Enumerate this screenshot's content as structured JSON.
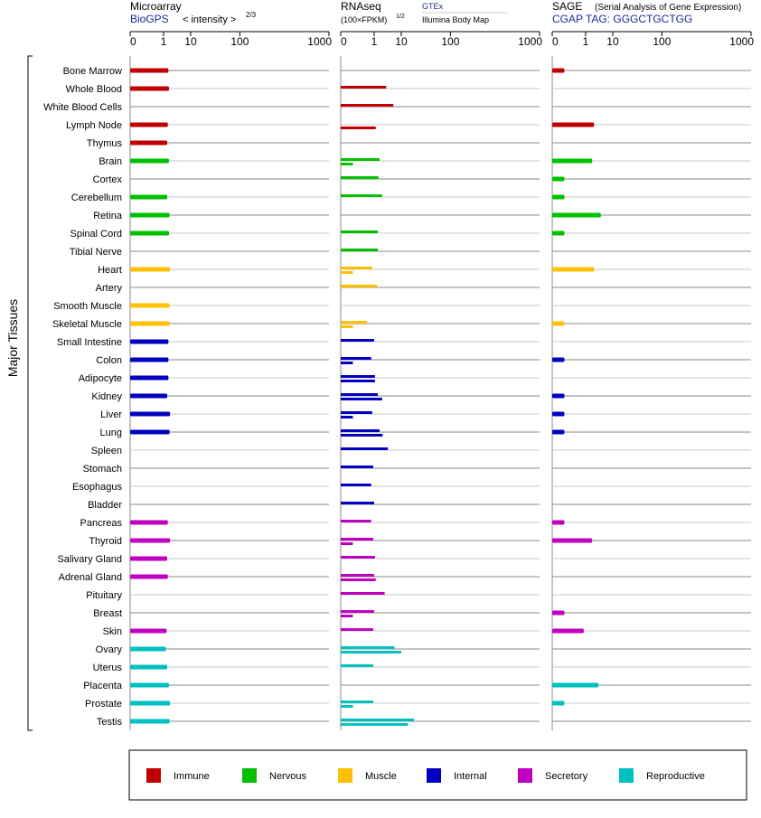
{
  "chart_data": {
    "type": "bar",
    "y_group_label": "Major Tissues",
    "x_ticks": [
      "0",
      "1",
      "10",
      "100",
      "1000"
    ],
    "tissues": [
      {
        "name": "Bone Marrow",
        "group": "immune"
      },
      {
        "name": "Whole Blood",
        "group": "immune"
      },
      {
        "name": "White Blood Cells",
        "group": "immune"
      },
      {
        "name": "Lymph Node",
        "group": "immune"
      },
      {
        "name": "Thymus",
        "group": "immune"
      },
      {
        "name": "Brain",
        "group": "nervous"
      },
      {
        "name": "Cortex",
        "group": "nervous"
      },
      {
        "name": "Cerebellum",
        "group": "nervous"
      },
      {
        "name": "Retina",
        "group": "nervous"
      },
      {
        "name": "Spinal Cord",
        "group": "nervous"
      },
      {
        "name": "Tibial Nerve",
        "group": "nervous"
      },
      {
        "name": "Heart",
        "group": "muscle"
      },
      {
        "name": "Artery",
        "group": "muscle"
      },
      {
        "name": "Smooth Muscle",
        "group": "muscle"
      },
      {
        "name": "Skeletal Muscle",
        "group": "muscle"
      },
      {
        "name": "Small Intestine",
        "group": "internal"
      },
      {
        "name": "Colon",
        "group": "internal"
      },
      {
        "name": "Adipocyte",
        "group": "internal"
      },
      {
        "name": "Kidney",
        "group": "internal"
      },
      {
        "name": "Liver",
        "group": "internal"
      },
      {
        "name": "Lung",
        "group": "internal"
      },
      {
        "name": "Spleen",
        "group": "internal"
      },
      {
        "name": "Stomach",
        "group": "internal"
      },
      {
        "name": "Esophagus",
        "group": "internal"
      },
      {
        "name": "Bladder",
        "group": "internal"
      },
      {
        "name": "Pancreas",
        "group": "secretory"
      },
      {
        "name": "Thyroid",
        "group": "secretory"
      },
      {
        "name": "Salivary Gland",
        "group": "secretory"
      },
      {
        "name": "Adrenal Gland",
        "group": "secretory"
      },
      {
        "name": "Pituitary",
        "group": "secretory"
      },
      {
        "name": "Breast",
        "group": "secretory"
      },
      {
        "name": "Skin",
        "group": "secretory"
      },
      {
        "name": "Ovary",
        "group": "reproductive"
      },
      {
        "name": "Uterus",
        "group": "reproductive"
      },
      {
        "name": "Placenta",
        "group": "reproductive"
      },
      {
        "name": "Prostate",
        "group": "reproductive"
      },
      {
        "name": "Testis",
        "group": "reproductive"
      }
    ],
    "colors": {
      "immune": "#c00000",
      "nervous": "#00c000",
      "muscle": "#ffc000",
      "internal": "#0000c0",
      "secretory": "#c000c0",
      "reproductive": "#00c0c0"
    },
    "legend": [
      {
        "key": "immune",
        "label": "Immune"
      },
      {
        "key": "nervous",
        "label": "Nervous"
      },
      {
        "key": "muscle",
        "label": "Muscle"
      },
      {
        "key": "internal",
        "label": "Internal"
      },
      {
        "key": "secretory",
        "label": "Secretory"
      },
      {
        "key": "reproductive",
        "label": "Reproductive"
      }
    ],
    "panels": [
      {
        "id": "microarray",
        "title": "Microarray",
        "source": "BioGPS",
        "scale_label": "< intensity >",
        "scale_exponent": "2/3",
        "xlim": [
          0,
          1000
        ],
        "series": [
          {
            "values": [
              1.7,
              1.8,
              null,
              1.6,
              1.5,
              1.8,
              null,
              1.5,
              1.9,
              1.8,
              null,
              2.0,
              null,
              1.9,
              1.9,
              1.7,
              1.7,
              1.7,
              1.5,
              2.0,
              1.9,
              null,
              null,
              null,
              null,
              1.6,
              2.0,
              1.5,
              1.6,
              null,
              null,
              1.4,
              1.3,
              1.5,
              1.8,
              2.0,
              1.9
            ]
          }
        ]
      },
      {
        "id": "rnaseq",
        "title": "RNAseq",
        "scale_label": "(100×FPKM)",
        "scale_exponent": "1/2",
        "sources": [
          "GTEx",
          "Illumina Body Map"
        ],
        "xlim": [
          0,
          1000
        ],
        "series": [
          {
            "values": [
              null,
              3.3,
              5.8,
              null,
              null,
              1.8,
              1.6,
              2.3,
              null,
              1.5,
              1.5,
              0.8,
              1.4,
              null,
              0.4,
              1.0,
              0.7,
              1.1,
              1.5,
              0.8,
              1.8,
              3.8,
              0.9,
              0.7,
              1.0,
              0.7,
              0.9,
              1.1,
              1.0,
              2.9,
              1.0,
              0.9,
              6.3,
              0.9,
              null,
              0.9,
              21.0
            ]
          },
          {
            "values": [
              null,
              null,
              null,
              1.2,
              null,
              0.02,
              null,
              null,
              null,
              null,
              null,
              0.02,
              null,
              null,
              0.02,
              null,
              0.02,
              1.1,
              2.3,
              0.02,
              2.4,
              null,
              null,
              null,
              null,
              null,
              0.02,
              null,
              1.2,
              null,
              0.02,
              null,
              10.0,
              null,
              null,
              0.02,
              15.0
            ]
          }
        ]
      },
      {
        "id": "sage",
        "title": "SAGE",
        "subtitle": "(Serial Analysis of Gene Expression)",
        "source": "CGAP TAG: GGGCTGCTGG",
        "xlim": [
          0,
          1000
        ],
        "series": [
          {
            "values": [
              0.02,
              null,
              null,
              2.4,
              null,
              2.0,
              0.02,
              0.02,
              4.3,
              0.02,
              null,
              2.4,
              null,
              null,
              0.02,
              null,
              0.02,
              null,
              0.02,
              0.02,
              0.02,
              null,
              null,
              null,
              null,
              0.02,
              2.0,
              null,
              null,
              null,
              0.02,
              0.8,
              null,
              null,
              3.5,
              0.02,
              null
            ]
          }
        ]
      }
    ]
  }
}
